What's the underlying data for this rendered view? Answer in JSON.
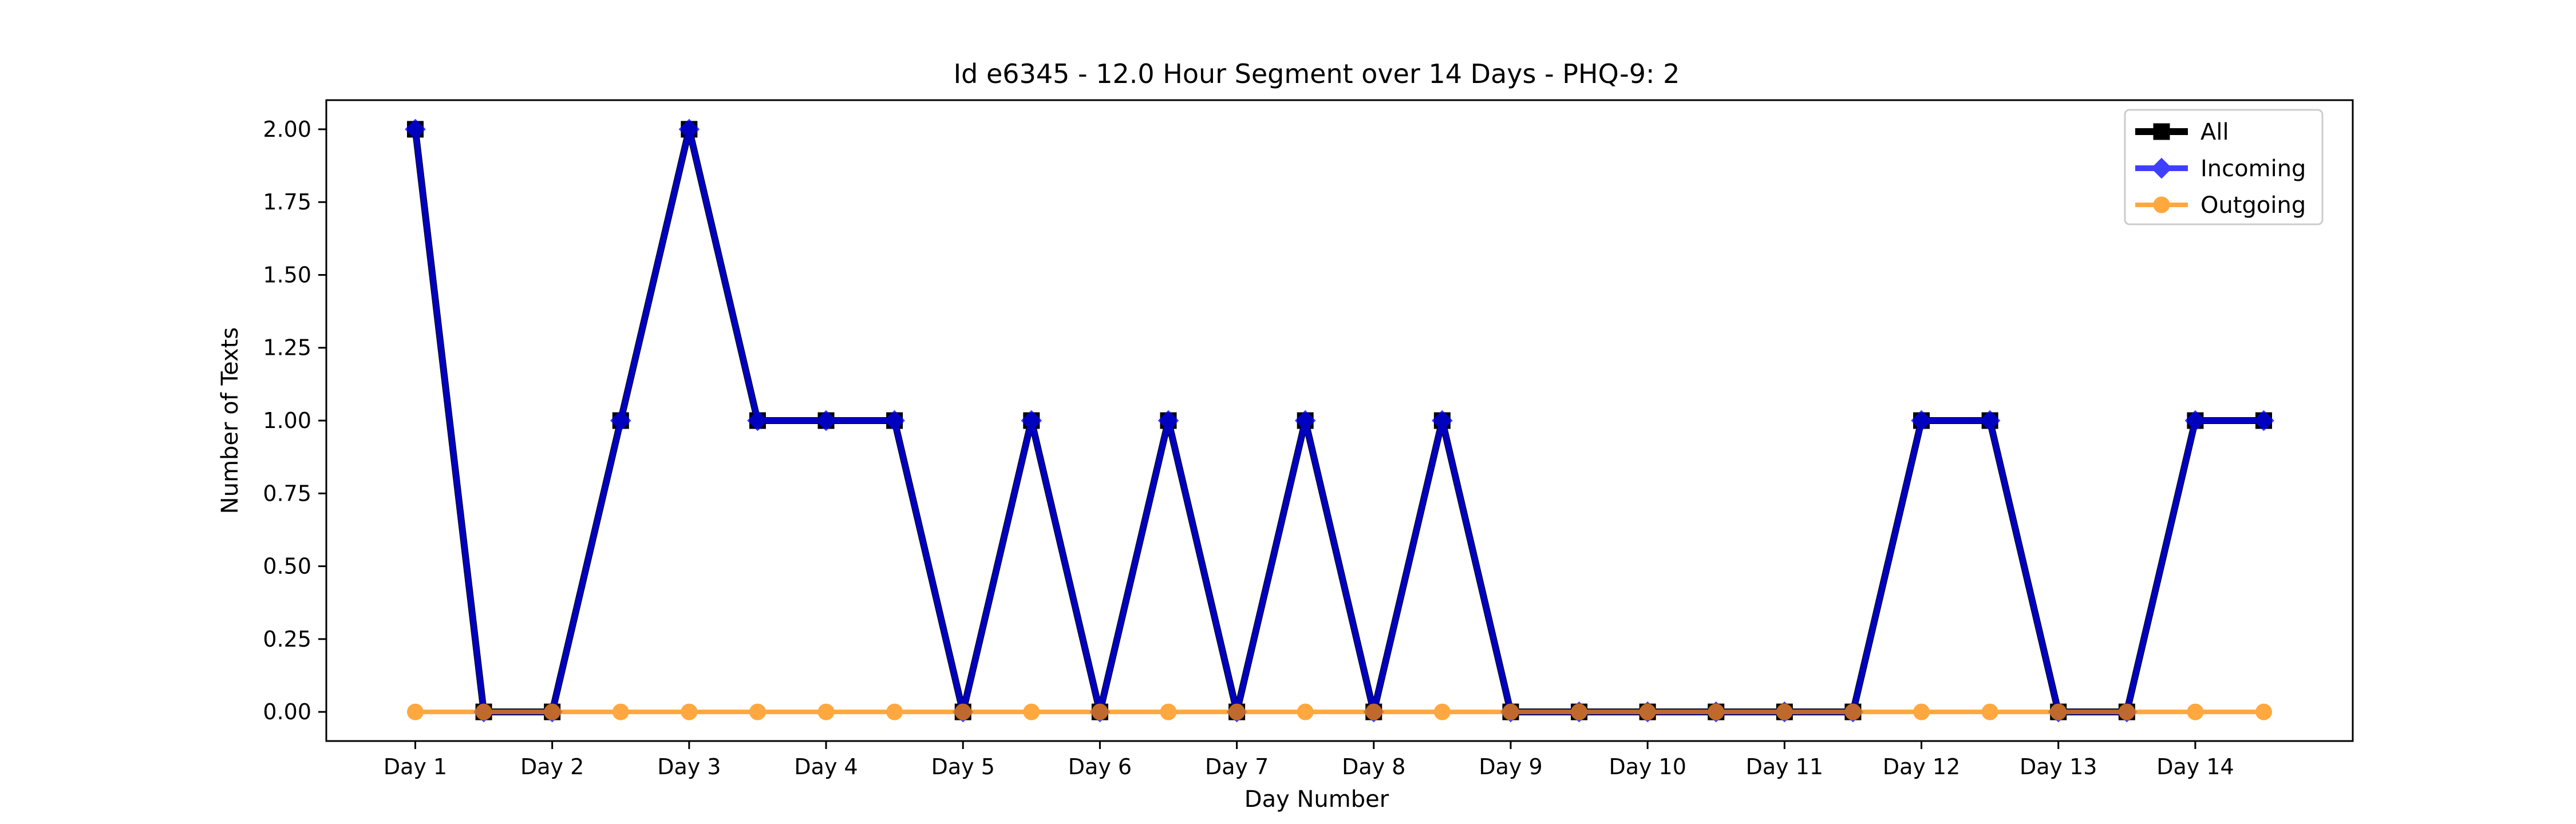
{
  "chart_data": {
    "type": "line",
    "title": "Id e6345 - 12.0 Hour Segment over 14 Days - PHQ-9: 2",
    "xlabel": "Day Number",
    "ylabel": "Number of Texts",
    "categories": [
      "Day 1",
      "Day 2",
      "Day 3",
      "Day 4",
      "Day 5",
      "Day 6",
      "Day 7",
      "Day 8",
      "Day 9",
      "Day 10",
      "Day 11",
      "Day 12",
      "Day 13",
      "Day 14"
    ],
    "x": [
      1,
      1.5,
      2,
      2.5,
      3,
      3.5,
      4,
      4.5,
      5,
      5.5,
      6,
      6.5,
      7,
      7.5,
      8,
      8.5,
      9,
      9.5,
      10,
      10.5,
      11,
      11.5,
      12,
      12.5,
      13,
      13.5,
      14,
      14.5
    ],
    "yticks": [
      "0.00",
      "0.25",
      "0.50",
      "0.75",
      "1.00",
      "1.25",
      "1.50",
      "1.75",
      "2.00"
    ],
    "ytick_values": [
      0,
      0.25,
      0.5,
      0.75,
      1,
      1.25,
      1.5,
      1.75,
      2
    ],
    "xlim": [
      0.35,
      15.15
    ],
    "ylim": [
      -0.1,
      2.1
    ],
    "grid": false,
    "legend": "top-right",
    "series": [
      {
        "name": "All",
        "color": "#000000",
        "marker": "square",
        "values": [
          2,
          0,
          0,
          1,
          2,
          1,
          1,
          1,
          0,
          1,
          0,
          1,
          0,
          1,
          0,
          1,
          0,
          0,
          0,
          0,
          0,
          0,
          1,
          1,
          0,
          0,
          1,
          1
        ]
      },
      {
        "name": "Incoming",
        "color": "#0000ff",
        "marker": "diamond",
        "values": [
          2,
          0,
          0,
          1,
          2,
          1,
          1,
          1,
          0,
          1,
          0,
          1,
          0,
          1,
          0,
          1,
          0,
          0,
          0,
          0,
          0,
          0,
          1,
          1,
          0,
          0,
          1,
          1
        ]
      },
      {
        "name": "Outgoing",
        "color": "#ff8c00",
        "marker": "circle",
        "values": [
          0,
          0,
          0,
          0,
          0,
          0,
          0,
          0,
          0,
          0,
          0,
          0,
          0,
          0,
          0,
          0,
          0,
          0,
          0,
          0,
          0,
          0,
          0,
          0,
          0,
          0,
          0,
          0
        ]
      }
    ]
  }
}
